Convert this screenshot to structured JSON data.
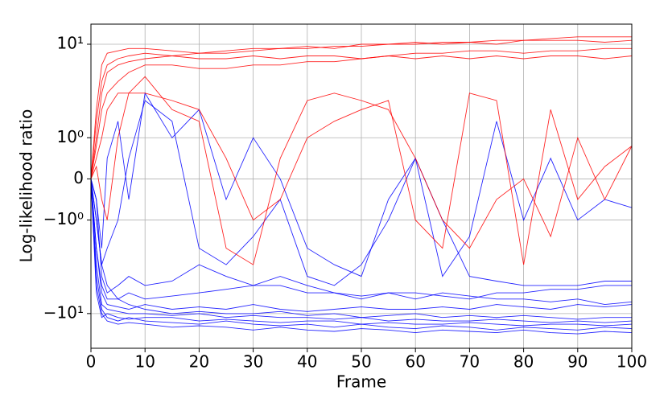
{
  "chart_data": {
    "type": "line",
    "xlabel": "Frame",
    "ylabel": "Log-likelihood ratio",
    "yscale": "symlog",
    "linthresh": 1,
    "grid": true,
    "xlim": [
      0,
      100
    ],
    "ylim": [
      -23.5,
      16.4
    ],
    "xticks": [
      0,
      10,
      20,
      30,
      40,
      50,
      60,
      70,
      80,
      90,
      100
    ],
    "yticks": [
      {
        "value": -10,
        "label": "−10¹"
      },
      {
        "value": -1,
        "label": "−10⁰"
      },
      0,
      {
        "value": 1,
        "label": "10⁰"
      },
      {
        "value": 10,
        "label": "10¹"
      }
    ],
    "x": [
      0,
      1,
      2,
      3,
      5,
      7,
      10,
      15,
      20,
      25,
      30,
      35,
      40,
      45,
      50,
      55,
      60,
      65,
      70,
      75,
      80,
      85,
      90,
      95,
      100
    ],
    "series": [
      {
        "color": "#0000ff",
        "values": [
          0,
          -3,
          -8,
          -9,
          -9.5,
          -10,
          -10,
          -10.5,
          -10,
          -11,
          -10.5,
          -11,
          -11,
          -11.5,
          -11,
          -12,
          -11.5,
          -12,
          -12,
          -11.5,
          -12,
          -12.5,
          -12,
          -12.5,
          -12
        ]
      },
      {
        "color": "#0000ff",
        "values": [
          0,
          -4,
          -9,
          -11,
          -12,
          -11,
          -12,
          -12.5,
          -13,
          -12,
          -13,
          -13.5,
          -13,
          -14,
          -13,
          -14,
          -14.5,
          -13.5,
          -14,
          -15,
          -14,
          -14.5,
          -15,
          -14,
          -14.5
        ]
      },
      {
        "color": "#0000ff",
        "values": [
          0,
          -2,
          -6,
          -8,
          -8.5,
          -9,
          -8,
          -9,
          -8.5,
          -9,
          -8,
          -9,
          -9.5,
          -9,
          -8.5,
          -9,
          -9,
          -8.5,
          -9,
          -8,
          -8.5,
          -9,
          -8,
          -8.5,
          -8
        ]
      },
      {
        "color": "#0000ff",
        "values": [
          0,
          -5,
          -10,
          -12,
          -13,
          -12.5,
          -13,
          -14,
          -13.5,
          -14,
          -15,
          -14,
          -15,
          -15.5,
          -14.5,
          -15,
          -16,
          -15,
          -15.5,
          -16,
          -15,
          -16,
          -16.5,
          -15.5,
          -16
        ]
      },
      {
        "color": "#0000ff",
        "values": [
          0,
          -1,
          -3,
          -5,
          -7,
          -8,
          -9,
          -10,
          -9.5,
          -10,
          -10,
          -9.5,
          -10.5,
          -10,
          -11,
          -10.5,
          -10,
          -11,
          -10.5,
          -11,
          -10.5,
          -11,
          -11.5,
          -11,
          -11
        ]
      },
      {
        "color": "#0000ff",
        "values": [
          0,
          -6,
          -11,
          -10,
          -11,
          -11.5,
          -11,
          -11,
          -12,
          -11.5,
          -12,
          -12.5,
          -12,
          -12,
          -13,
          -12.5,
          -13,
          -13,
          -12.5,
          -13,
          -13.5,
          -13,
          -13,
          -13.5,
          -13
        ]
      },
      {
        "color": "#0000ff",
        "values": [
          0,
          -0.5,
          -2,
          0.5,
          1.5,
          -0.5,
          3,
          1,
          2,
          -0.5,
          1,
          0,
          -2,
          -3,
          -4,
          -0.5,
          0.5,
          -1,
          -4,
          -4.5,
          -5,
          -5,
          -5,
          -4.5,
          -4.5
        ]
      },
      {
        "color": "#0000ff",
        "values": [
          0,
          -1,
          -3,
          -2,
          -1,
          0.5,
          2.5,
          1.5,
          -2,
          -3,
          -1.5,
          -0.5,
          -4,
          -5,
          -3,
          -1,
          0.5,
          -4,
          -1.5,
          1.5,
          -1,
          0.5,
          -1,
          -0.5,
          -0.7
        ]
      },
      {
        "color": "#0000ff",
        "values": [
          0,
          -0.5,
          -4,
          -6,
          -5,
          -4,
          -5,
          -4.5,
          -3,
          -4,
          -5,
          -4,
          -5,
          -6,
          -7,
          -6,
          -6,
          -6.5,
          -7,
          -6,
          -6,
          -5.5,
          -5.5,
          -5,
          -5
        ]
      },
      {
        "color": "#0000ff",
        "values": [
          0,
          -2,
          -5,
          -7,
          -7,
          -6,
          -7,
          -6.5,
          -6,
          -5.5,
          -5,
          -5,
          -6,
          -6,
          -6.5,
          -6,
          -7,
          -6,
          -6.5,
          -7,
          -7,
          -7.5,
          -7,
          -8,
          -7.5
        ]
      },
      {
        "color": "#ff0000",
        "values": [
          0,
          2,
          6,
          8,
          8.5,
          9,
          9,
          8.5,
          8,
          8.5,
          9,
          9,
          9.5,
          9,
          10,
          10,
          10,
          10.5,
          10.5,
          11,
          11,
          11.5,
          12,
          12,
          12
        ]
      },
      {
        "color": "#ff0000",
        "values": [
          0,
          1.5,
          4,
          6,
          7,
          7.5,
          8,
          7.5,
          7,
          7,
          7.5,
          7,
          7.5,
          7.5,
          7,
          7.5,
          7,
          7.5,
          7,
          7.5,
          7,
          7.5,
          7.5,
          7,
          7.5
        ]
      },
      {
        "color": "#ff0000",
        "values": [
          0,
          1,
          3,
          5,
          6,
          6.5,
          7,
          7.5,
          8,
          8,
          8.5,
          9,
          9,
          9.5,
          9.5,
          10,
          10.5,
          10,
          10.5,
          10,
          11,
          11,
          11,
          10.5,
          11
        ]
      },
      {
        "color": "#ff0000",
        "values": [
          0,
          0.8,
          2,
          3,
          4,
          5,
          6,
          6,
          5.5,
          5.5,
          6,
          6,
          6.5,
          6.5,
          7,
          7.5,
          8,
          8,
          8.5,
          8.5,
          8,
          8.5,
          8.5,
          9,
          9
        ]
      },
      {
        "color": "#ff0000",
        "values": [
          0,
          0.5,
          1,
          2,
          3,
          3,
          3,
          2.5,
          2,
          0.5,
          -1,
          -0.5,
          1,
          1.5,
          2,
          2.5,
          -1,
          -2,
          3,
          2.5,
          -3,
          2,
          -0.5,
          0.3,
          0.8
        ]
      },
      {
        "color": "#ff0000",
        "values": [
          0,
          0.3,
          -0.5,
          -1,
          1,
          3,
          4.5,
          2,
          1.5,
          -2,
          -3,
          0.5,
          2.5,
          3,
          2.5,
          2,
          0.5,
          -1,
          -2,
          -0.5,
          0,
          -1.5,
          1,
          -0.5,
          0.8
        ]
      }
    ]
  }
}
